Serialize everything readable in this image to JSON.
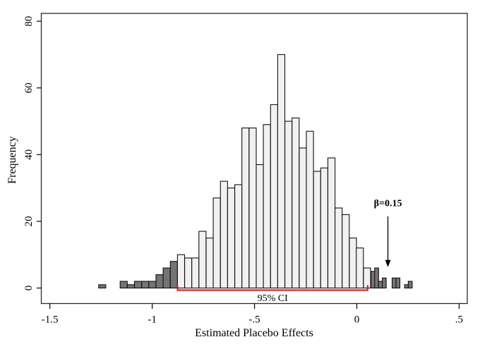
{
  "figure": {
    "background": "#ffffff",
    "frame_color": "#2b2b2b",
    "bar_outline_color": "#111111",
    "light_bar_fill": "#f1f1f1",
    "dark_bar_fill": "#747474"
  },
  "chart_data": {
    "type": "bar",
    "subtype": "histogram",
    "title": "",
    "xlabel": "Estimated Placebo Effects",
    "ylabel": "Frequency",
    "grid": false,
    "legend": "none",
    "xlim": [
      -1.542,
      0.54
    ],
    "ylim": [
      -4.65,
      82.35
    ],
    "x_ticks": [
      {
        "v": -1.5,
        "label": "-1.5"
      },
      {
        "v": -1.0,
        "label": "-1"
      },
      {
        "v": -0.5,
        "label": "-.5"
      },
      {
        "v": 0.0,
        "label": "0"
      },
      {
        "v": 0.5,
        "label": ".5"
      }
    ],
    "y_ticks": [
      {
        "v": 0,
        "label": "0"
      },
      {
        "v": 20,
        "label": "20"
      },
      {
        "v": 40,
        "label": "40"
      },
      {
        "v": 60,
        "label": "60"
      },
      {
        "v": 80,
        "label": "80"
      }
    ],
    "bin_width": 0.035,
    "series": [
      {
        "name": "placebo-effects-outside-ci-left-tail",
        "shade": "dark",
        "bin_width": 0.035,
        "bars": [
          [
            -1.244,
            1
          ],
          [
            -1.139,
            2
          ],
          [
            -1.104,
            1
          ],
          [
            -1.069,
            2
          ],
          [
            -1.034,
            2
          ],
          [
            -0.999,
            2
          ],
          [
            -0.964,
            4
          ],
          [
            -0.929,
            6
          ],
          [
            -0.894,
            8
          ]
        ]
      },
      {
        "name": "placebo-effects-inside-ci",
        "shade": "light",
        "bin_width": 0.035,
        "bars": [
          [
            -0.859,
            10
          ],
          [
            -0.824,
            9
          ],
          [
            -0.789,
            9
          ],
          [
            -0.754,
            17
          ],
          [
            -0.719,
            15
          ],
          [
            -0.684,
            27
          ],
          [
            -0.649,
            32
          ],
          [
            -0.614,
            30
          ],
          [
            -0.579,
            31
          ],
          [
            -0.544,
            48
          ],
          [
            -0.509,
            48
          ],
          [
            -0.474,
            37
          ],
          [
            -0.439,
            49
          ],
          [
            -0.404,
            55
          ],
          [
            -0.369,
            70
          ],
          [
            -0.334,
            50
          ],
          [
            -0.299,
            51
          ],
          [
            -0.264,
            42
          ],
          [
            -0.229,
            47
          ],
          [
            -0.194,
            35
          ],
          [
            -0.159,
            36
          ],
          [
            -0.124,
            39
          ],
          [
            -0.089,
            24
          ],
          [
            -0.054,
            22
          ],
          [
            -0.019,
            15
          ],
          [
            0.015,
            12
          ],
          [
            0.05,
            6
          ]
        ]
      },
      {
        "name": "placebo-effects-outside-ci-right-tail",
        "shade": "dark",
        "bin_width": 0.019,
        "bars": [
          [
            0.079,
            5
          ],
          [
            0.097,
            6
          ],
          [
            0.116,
            2
          ],
          [
            0.134,
            3
          ],
          [
            0.182,
            3
          ],
          [
            0.201,
            3
          ],
          [
            0.243,
            1
          ],
          [
            0.261,
            2
          ]
        ]
      }
    ],
    "ci_bracket": {
      "x_from": -0.876,
      "x_to": 0.053,
      "label": "95% CI",
      "color": "#fe0000"
    },
    "annotation": {
      "label": "β=0.15",
      "x": 0.152,
      "text_y": 24.5,
      "arrow_top_y": 21.5,
      "arrow_tip_y": 6.3
    }
  }
}
